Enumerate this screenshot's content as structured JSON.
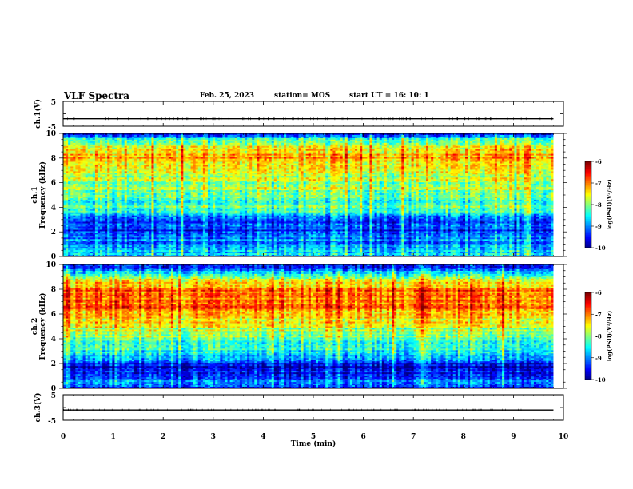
{
  "header": {
    "title": "VLF Spectra",
    "date": "Feb. 25, 2023",
    "station": "station= MOS",
    "start": "start  UT =   16: 10: 1"
  },
  "chart_data": [
    {
      "type": "line",
      "name": "ch1-waveform",
      "ylabel": "ch.1(V)",
      "ylim": [
        -5,
        5
      ],
      "yticks": [
        "5",
        "-5"
      ],
      "x": [
        0,
        9.8
      ],
      "values": [
        -2,
        -2
      ],
      "grid": false
    },
    {
      "type": "heatmap",
      "name": "ch1-spectrogram",
      "ylabel": "ch.1\nFrequency (kHz)",
      "xlim": [
        0,
        10
      ],
      "ylim": [
        0,
        10
      ],
      "yticks": [
        "0",
        "2",
        "4",
        "6",
        "8",
        "10"
      ],
      "data_xmax": 9.8,
      "freq_kHz": [
        0,
        0.5,
        1,
        1.5,
        2,
        2.5,
        3,
        3.5,
        4,
        4.5,
        5,
        5.5,
        6,
        6.5,
        7,
        7.5,
        8,
        8.5,
        9,
        9.5,
        10
      ],
      "log_psd": [
        -8.8,
        -8.6,
        -9.0,
        -9.0,
        -9.4,
        -9.3,
        -9.1,
        -8.6,
        -8.3,
        -8.2,
        -8.1,
        -8.0,
        -7.9,
        -7.8,
        -7.7,
        -7.5,
        -7.2,
        -7.4,
        -7.6,
        -8.4,
        -9.8
      ],
      "colorbar": {
        "label": "log(PSD)(V²/Hz)",
        "min": -10,
        "max": -6,
        "ticks": [
          "-6",
          "-7",
          "-8",
          "-9",
          "-10"
        ]
      }
    },
    {
      "type": "heatmap",
      "name": "ch2-spectrogram",
      "ylabel": "ch.2\nFrequency (kHz)",
      "xlim": [
        0,
        10
      ],
      "ylim": [
        0,
        10
      ],
      "yticks": [
        "0",
        "2",
        "4",
        "6",
        "8",
        "10"
      ],
      "data_xmax": 9.8,
      "freq_kHz": [
        0,
        0.5,
        1,
        1.5,
        2,
        2.5,
        3,
        3.5,
        4,
        4.5,
        5,
        5.5,
        6,
        6.5,
        7,
        7.5,
        8,
        8.5,
        9,
        9.5,
        10
      ],
      "log_psd": [
        -9.6,
        -9.0,
        -9.2,
        -9.6,
        -9.6,
        -8.8,
        -8.4,
        -8.2,
        -8.1,
        -7.9,
        -7.7,
        -7.4,
        -7.1,
        -6.9,
        -6.9,
        -6.9,
        -7.0,
        -7.4,
        -8.1,
        -8.8,
        -9.7
      ],
      "colorbar": {
        "label": "log(PSD)(V²/Hz)",
        "min": -10,
        "max": -6,
        "ticks": [
          "-6",
          "-7",
          "-8",
          "-9",
          "-10"
        ]
      }
    },
    {
      "type": "line",
      "name": "ch3-waveform",
      "ylabel": "ch.3(V)",
      "ylim": [
        -5,
        5
      ],
      "yticks": [
        "5",
        "-5"
      ],
      "x": [
        0,
        9.8
      ],
      "values": [
        -1,
        -1
      ],
      "grid": false
    }
  ],
  "xaxis": {
    "label": "Time  (min)",
    "ticks": [
      "0",
      "1",
      "2",
      "3",
      "4",
      "5",
      "6",
      "7",
      "8",
      "9",
      "10"
    ],
    "xlim": [
      0,
      10
    ]
  }
}
